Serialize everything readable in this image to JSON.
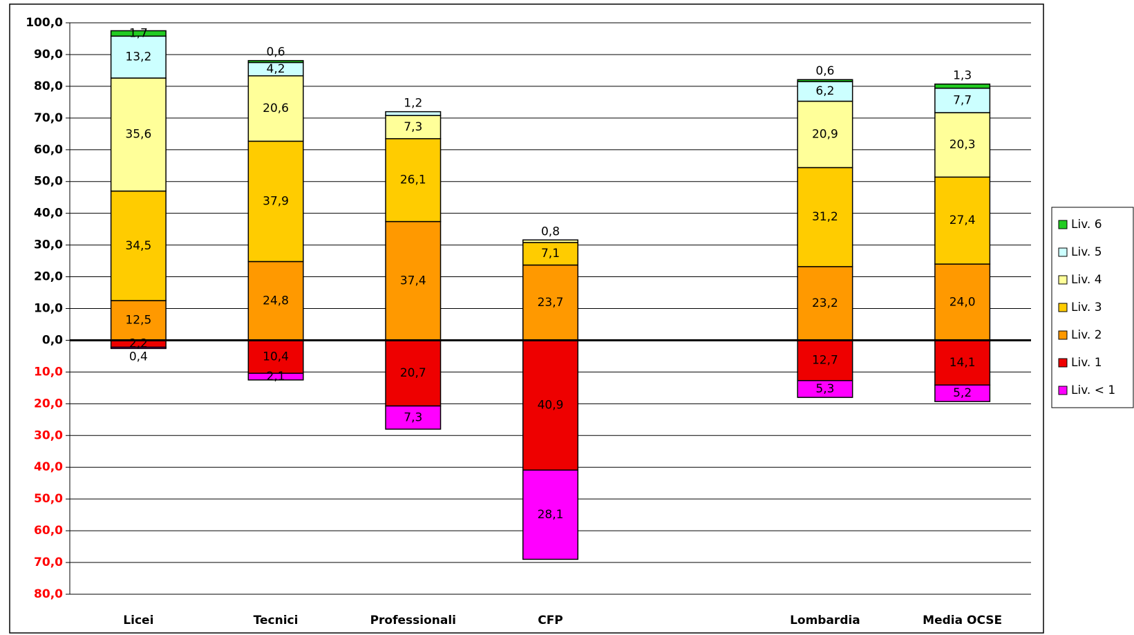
{
  "chart_data": {
    "type": "bar",
    "stacked": true,
    "categories": [
      "Licei",
      "Tecnici",
      "Professionali",
      "CFP",
      null,
      "Lombardia",
      "Media OCSE"
    ],
    "series": [
      {
        "name": "Liv. 6",
        "color": "#22cc22",
        "values": [
          1.7,
          0.6,
          null,
          null,
          null,
          0.6,
          1.3
        ],
        "value_labels": [
          "1,7",
          "0,6",
          null,
          null,
          null,
          "0,6",
          "1,3"
        ]
      },
      {
        "name": "Liv. 5",
        "color": "#ccffff",
        "values": [
          13.2,
          4.2,
          1.2,
          null,
          null,
          6.2,
          7.7
        ],
        "value_labels": [
          "13,2",
          "4,2",
          "1,2",
          null,
          null,
          "6,2",
          "7,7"
        ]
      },
      {
        "name": "Liv. 4",
        "color": "#ffff99",
        "values": [
          35.6,
          20.6,
          7.3,
          0.8,
          null,
          20.9,
          20.3
        ],
        "value_labels": [
          "35,6",
          "20,6",
          "7,3",
          "0,8",
          null,
          "20,9",
          "20,3"
        ]
      },
      {
        "name": "Liv. 3",
        "color": "#ffcc00",
        "values": [
          34.5,
          37.9,
          26.1,
          7.1,
          null,
          31.2,
          27.4
        ],
        "value_labels": [
          "34,5",
          "37,9",
          "26,1",
          "7,1",
          null,
          "31,2",
          "27,4"
        ]
      },
      {
        "name": "Liv. 2",
        "color": "#ff9900",
        "values": [
          12.5,
          24.8,
          37.4,
          23.7,
          null,
          23.2,
          24.0
        ],
        "value_labels": [
          "12,5",
          "24,8",
          "37,4",
          "23,7",
          null,
          "23,2",
          "24,0"
        ]
      },
      {
        "name": "Liv. 1",
        "color": "#ee0000",
        "values": [
          -2.2,
          -10.4,
          -20.7,
          -40.9,
          null,
          -12.7,
          -14.1
        ],
        "value_labels": [
          "2,2",
          "10,4",
          "20,7",
          "40,9",
          null,
          "12,7",
          "14,1"
        ]
      },
      {
        "name": "Liv. < 1",
        "color": "#ff00ff",
        "values": [
          -0.4,
          -2.1,
          -7.3,
          -28.1,
          null,
          -5.3,
          -5.2
        ],
        "value_labels": [
          "0,4",
          "2,1",
          "7,3",
          "28,1",
          null,
          "5,3",
          "5,2"
        ]
      }
    ],
    "ylim": [
      -80,
      100
    ],
    "yticks": [
      {
        "value": 100,
        "label": "100,0"
      },
      {
        "value": 90,
        "label": "90,0"
      },
      {
        "value": 80,
        "label": "80,0"
      },
      {
        "value": 70,
        "label": "70,0"
      },
      {
        "value": 60,
        "label": "60,0"
      },
      {
        "value": 50,
        "label": "50,0"
      },
      {
        "value": 40,
        "label": "40,0"
      },
      {
        "value": 30,
        "label": "30,0"
      },
      {
        "value": 20,
        "label": "20,0"
      },
      {
        "value": 10,
        "label": "10,0"
      },
      {
        "value": 0,
        "label": "0,0"
      },
      {
        "value": -10,
        "label": "10,0"
      },
      {
        "value": -20,
        "label": "20,0"
      },
      {
        "value": -30,
        "label": "30,0"
      },
      {
        "value": -40,
        "label": "40,0"
      },
      {
        "value": -50,
        "label": "50,0"
      },
      {
        "value": -60,
        "label": "60,0"
      },
      {
        "value": -70,
        "label": "70,0"
      },
      {
        "value": -80,
        "label": "80,0"
      }
    ],
    "negative_tick_color": "#ff0000",
    "grid": true,
    "legend": "right"
  }
}
